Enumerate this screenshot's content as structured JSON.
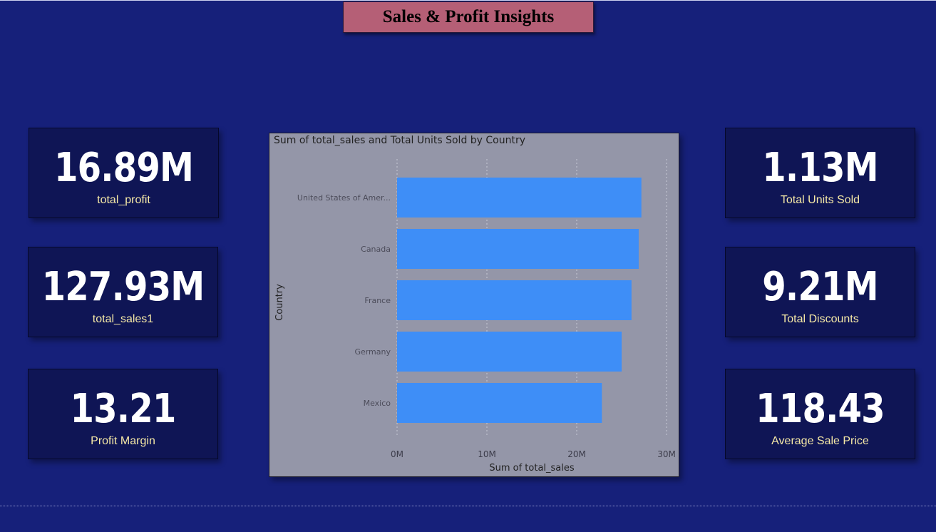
{
  "header": {
    "title": "Sales & Profit Insights"
  },
  "kpis_left": [
    {
      "value": "16.89M",
      "label": "total_profit"
    },
    {
      "value": "127.93M",
      "label": "total_sales1"
    },
    {
      "value": "13.21",
      "label": "Profit Margin"
    }
  ],
  "kpis_right": [
    {
      "value": "1.13M",
      "label": "Total Units Sold"
    },
    {
      "value": "9.21M",
      "label": "Total Discounts"
    },
    {
      "value": "118.43",
      "label": "Average Sale Price"
    }
  ],
  "chart_data": {
    "type": "bar",
    "orientation": "horizontal",
    "title": "Sum of total_sales and Total Units Sold by Country",
    "xlabel": "Sum of total_sales",
    "ylabel": "Country",
    "categories": [
      "United States of Amer...",
      "Canada",
      "France",
      "Germany",
      "Mexico"
    ],
    "series": [
      {
        "values": [
          27.2,
          26.9,
          26.1,
          25.0,
          22.8
        ]
      }
    ],
    "xlim": [
      0,
      30
    ],
    "xticks": [
      "0M",
      "10M",
      "20M",
      "30M"
    ],
    "grid": true,
    "bar_color": "#3e8ef7"
  }
}
